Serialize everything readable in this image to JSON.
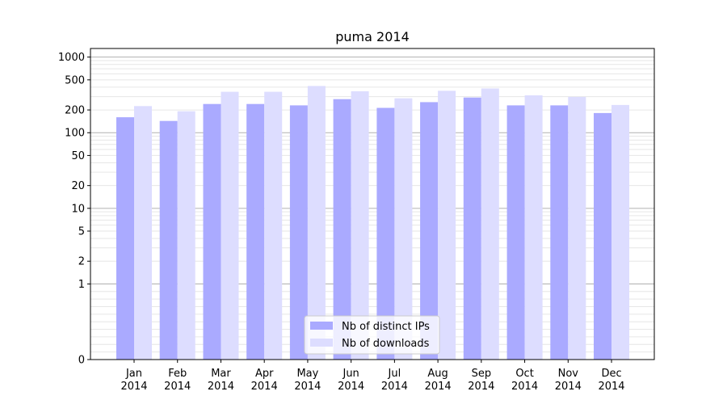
{
  "chart_data": {
    "type": "bar",
    "title": "puma 2014",
    "xlabel": "",
    "ylabel": "",
    "yscale": "symlog",
    "ylim": [
      0,
      1300
    ],
    "grid": true,
    "legend_position": "bottom-center",
    "categories": [
      "Jan\n2014",
      "Feb\n2014",
      "Mar\n2014",
      "Apr\n2014",
      "May\n2014",
      "Jun\n2014",
      "Jul\n2014",
      "Aug\n2014",
      "Sep\n2014",
      "Oct\n2014",
      "Nov\n2014",
      "Dec\n2014"
    ],
    "category_month": [
      "Jan",
      "Feb",
      "Mar",
      "Apr",
      "May",
      "Jun",
      "Jul",
      "Aug",
      "Sep",
      "Oct",
      "Nov",
      "Dec"
    ],
    "category_year": [
      "2014",
      "2014",
      "2014",
      "2014",
      "2014",
      "2014",
      "2014",
      "2014",
      "2014",
      "2014",
      "2014",
      "2014"
    ],
    "y_ticks": [
      0,
      1,
      2,
      5,
      10,
      20,
      50,
      100,
      200,
      500,
      1000
    ],
    "y_tick_labels": [
      "0",
      "1",
      "2",
      "5",
      "10",
      "20",
      "50",
      "100",
      "200",
      "500",
      "1000"
    ],
    "series": [
      {
        "name": "Nb of distinct IPs",
        "color": "#aaaaff",
        "values": [
          160,
          143,
          240,
          240,
          230,
          278,
          213,
          254,
          292,
          230,
          230,
          182
        ]
      },
      {
        "name": "Nb of downloads",
        "color": "#ddddff",
        "values": [
          225,
          192,
          348,
          348,
          415,
          354,
          285,
          358,
          385,
          312,
          298,
          233
        ]
      }
    ]
  }
}
